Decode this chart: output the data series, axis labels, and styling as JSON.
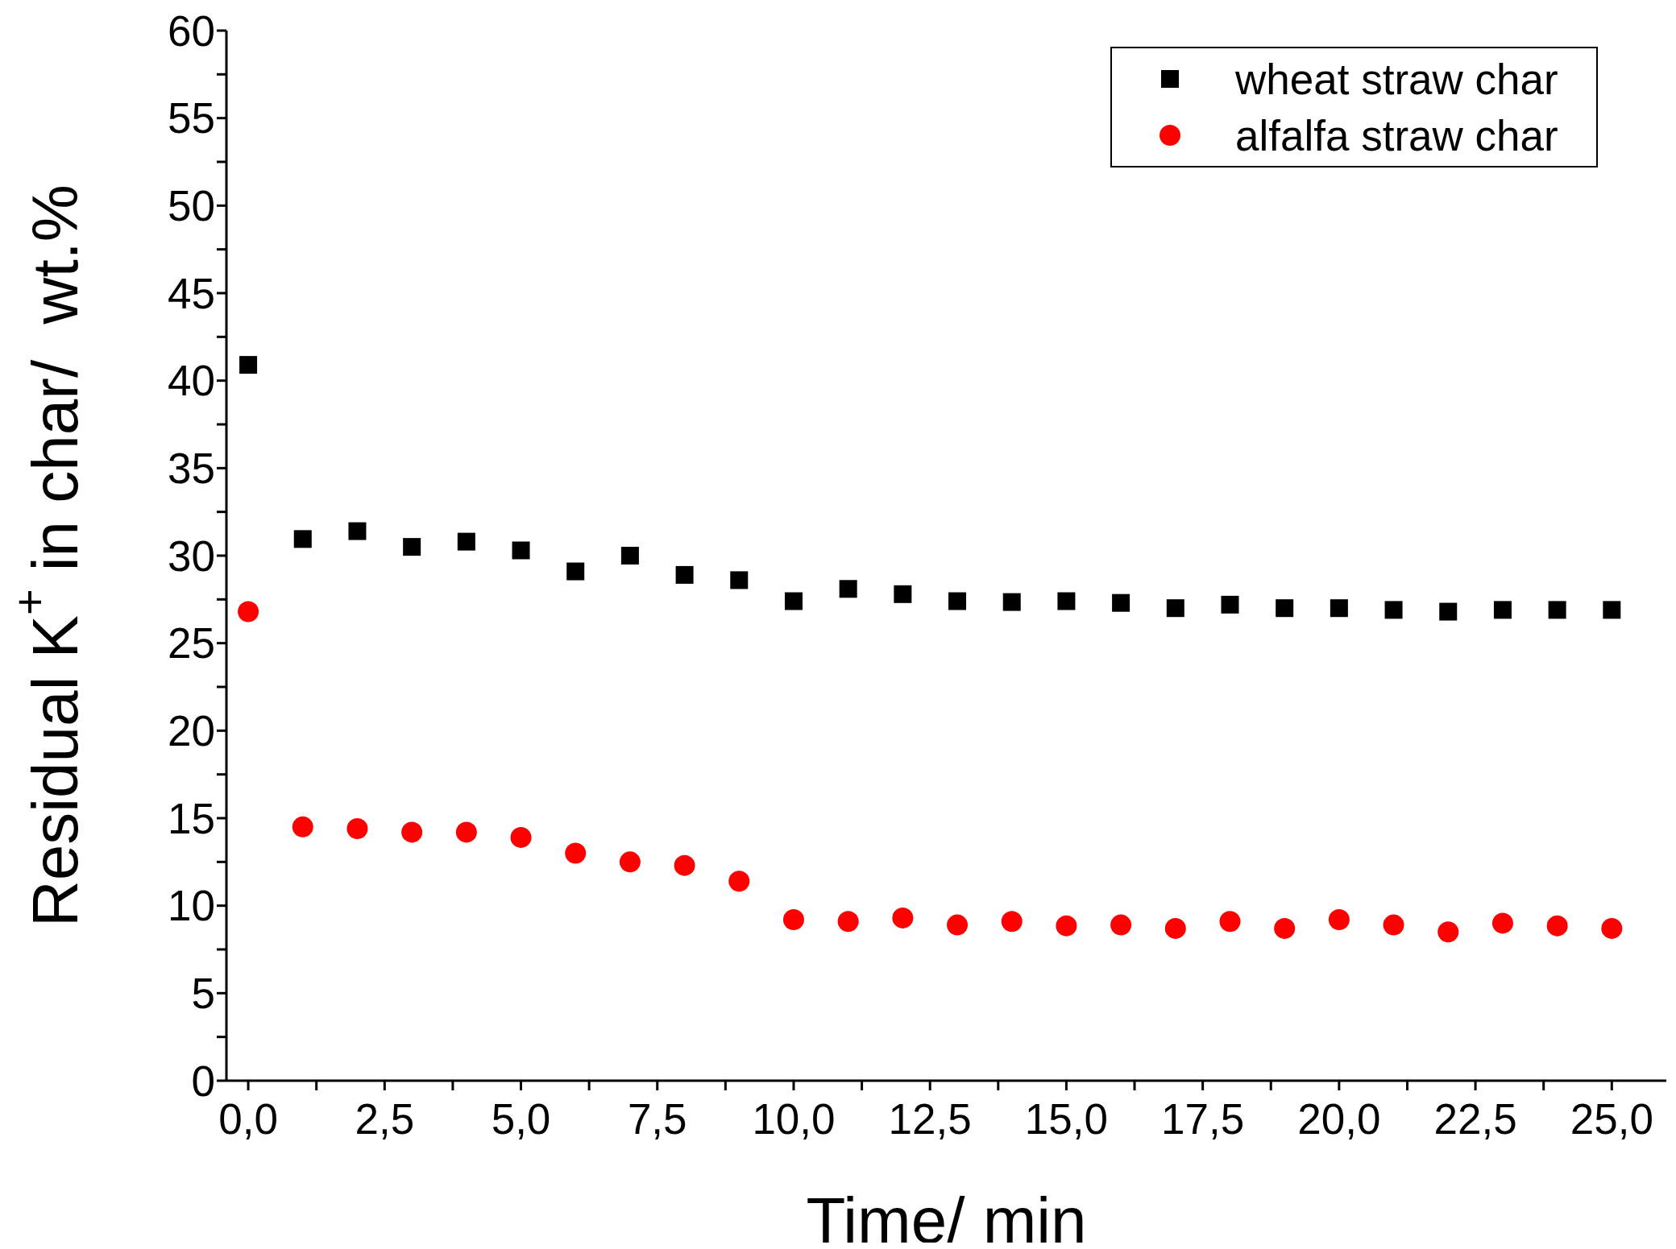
{
  "chart_data": {
    "type": "scatter",
    "xlabel": "Time/ min",
    "ylabel": "Residual K$^{+}$ in char/  wt.%",
    "x": [
      0,
      1,
      2,
      3,
      4,
      5,
      6,
      7,
      8,
      9,
      10,
      11,
      12,
      13,
      14,
      15,
      16,
      17,
      18,
      19,
      20,
      21,
      22,
      23,
      24,
      25
    ],
    "series": [
      {
        "name": "wheat straw char",
        "color": "#000000",
        "marker": "square",
        "values": [
          40.9,
          30.95,
          31.4,
          30.5,
          30.8,
          30.3,
          29.1,
          30.0,
          28.9,
          28.6,
          27.4,
          28.1,
          27.8,
          27.4,
          27.35,
          27.4,
          27.3,
          27.0,
          27.2,
          27.0,
          27.0,
          26.9,
          26.8,
          26.9,
          26.9,
          26.9
        ]
      },
      {
        "name": "alfalfa straw char",
        "color": "#ff0000",
        "marker": "circle",
        "values": [
          26.8,
          14.5,
          14.4,
          14.2,
          14.2,
          13.9,
          13.0,
          12.5,
          12.3,
          11.4,
          9.2,
          9.1,
          9.3,
          8.9,
          9.1,
          8.85,
          8.9,
          8.7,
          9.1,
          8.7,
          9.2,
          8.9,
          8.5,
          9.0,
          8.85,
          8.7
        ]
      }
    ],
    "xlim": [
      -0.4,
      26
    ],
    "xticks": [
      {
        "value": 0,
        "label": "0,0"
      },
      {
        "value": 1.25,
        "label": null
      },
      {
        "value": 2.5,
        "label": "2,5"
      },
      {
        "value": 3.75,
        "label": null
      },
      {
        "value": 5,
        "label": "5,0"
      },
      {
        "value": 6.25,
        "label": null
      },
      {
        "value": 7.5,
        "label": "7,5"
      },
      {
        "value": 8.75,
        "label": null
      },
      {
        "value": 10,
        "label": "10,0"
      },
      {
        "value": 11.25,
        "label": null
      },
      {
        "value": 12.5,
        "label": "12,5"
      },
      {
        "value": 13.75,
        "label": null
      },
      {
        "value": 15,
        "label": "15,0"
      },
      {
        "value": 16.25,
        "label": null
      },
      {
        "value": 17.5,
        "label": "17,5"
      },
      {
        "value": 18.75,
        "label": null
      },
      {
        "value": 20,
        "label": "20,0"
      },
      {
        "value": 21.25,
        "label": null
      },
      {
        "value": 22.5,
        "label": "22,5"
      },
      {
        "value": 23.75,
        "label": null
      },
      {
        "value": 25,
        "label": "25,0"
      }
    ],
    "ylim": [
      0,
      60
    ],
    "yticks": [
      0,
      {
        "value": 2.5,
        "label": null
      },
      5,
      {
        "value": 7.5,
        "label": null
      },
      10,
      {
        "value": 12.5,
        "label": null
      },
      15,
      {
        "value": 17.5,
        "label": null
      },
      20,
      {
        "value": 22.5,
        "label": null
      },
      25,
      {
        "value": 27.5,
        "label": null
      },
      30,
      {
        "value": 32.5,
        "label": null
      },
      35,
      {
        "value": 37.5,
        "label": null
      },
      40,
      {
        "value": 42.5,
        "label": null
      },
      45,
      {
        "value": 47.5,
        "label": null
      },
      50,
      {
        "value": 52.5,
        "label": null
      },
      55,
      {
        "value": 57.5,
        "label": null
      },
      60
    ],
    "grid": false,
    "legend": "top right"
  }
}
